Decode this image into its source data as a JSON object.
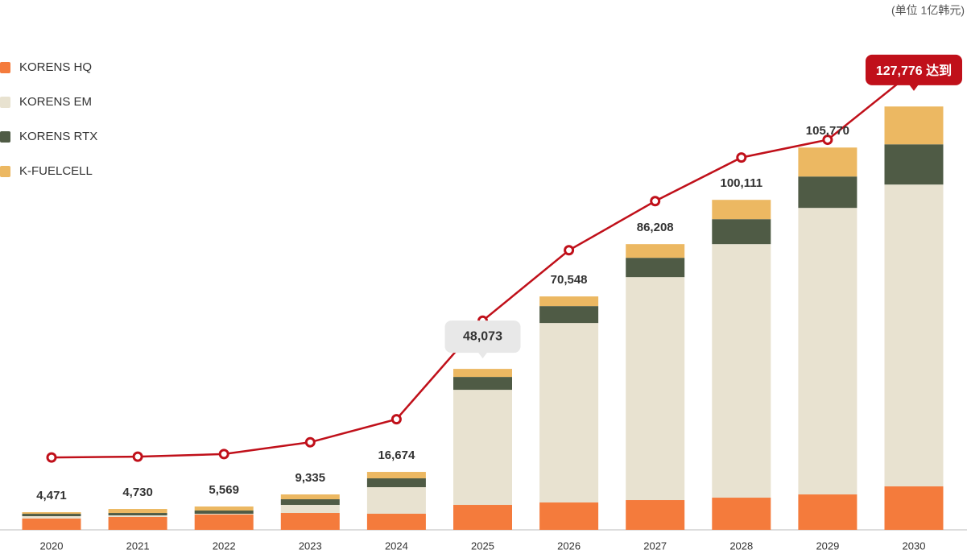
{
  "chart_data": {
    "type": "bar",
    "stacked": true,
    "unit_label": "(单位 1亿韩元)",
    "categories": [
      "2020",
      "2021",
      "2022",
      "2023",
      "2024",
      "2025",
      "2026",
      "2027",
      "2028",
      "2029",
      "2030"
    ],
    "ylim": [
      0,
      150000
    ],
    "y2lim": [
      -18600,
      145200
    ],
    "series": [
      {
        "name": "KORENS HQ",
        "color": "#f47b3c",
        "values": [
          3290,
          3760,
          4465,
          4935,
          4700,
          7285,
          7990,
          8695,
          9400,
          10340,
          12690
        ]
      },
      {
        "name": "KORENS EM",
        "color": "#e8e2d0",
        "values": [
          700,
          470,
          235,
          2350,
          7755,
          33605,
          52405,
          65095,
          74025,
          83660,
          88125
        ]
      },
      {
        "name": "KORENS RTX",
        "color": "#4f5b45",
        "values": [
          700,
          700,
          940,
          1645,
          2585,
          3760,
          4935,
          5640,
          7285,
          9165,
          11750
        ]
      },
      {
        "name": "K-FUELCELL",
        "color": "#ecb862",
        "values": [
          470,
          1175,
          1175,
          1410,
          1880,
          2350,
          2820,
          3995,
          5640,
          8460,
          11045
        ]
      },
      {
        "type": "line",
        "axis": "y2",
        "color": "#c0101a",
        "values": [
          4471,
          4730,
          5569,
          9335,
          16674,
          48073,
          70548,
          86208,
          100111,
          105770,
          127776
        ],
        "value_labels": [
          "4,471",
          "4,730",
          "5,569",
          "9,335",
          "16,674",
          "48,073",
          "70,548",
          "86,208",
          "100,111",
          "105,770",
          "127,776 达到"
        ]
      }
    ],
    "legend": "top-left"
  }
}
